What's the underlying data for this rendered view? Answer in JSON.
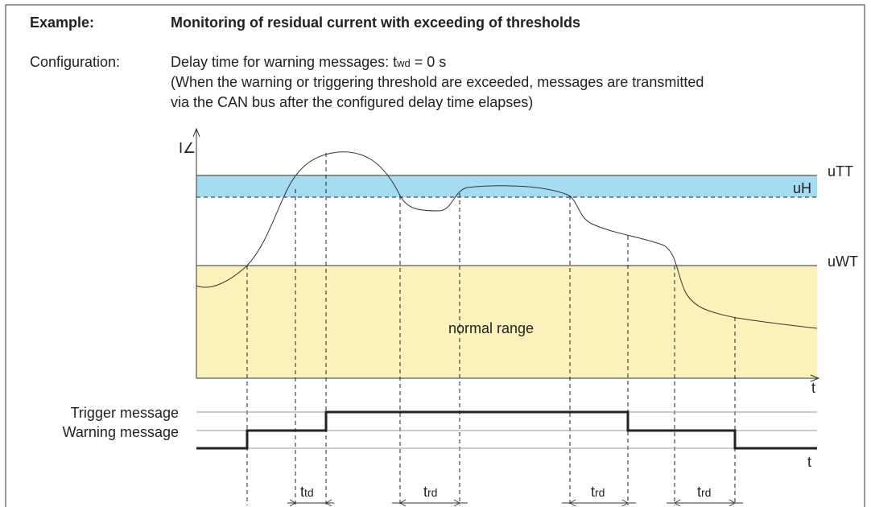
{
  "header": {
    "label": "Example:",
    "title": "Monitoring of residual current with exceeding of thresholds"
  },
  "configuration": {
    "label": "Configuration:",
    "line1": {
      "prefix": "Delay time for warning messages: t",
      "sub": "wd",
      "suffix": " = 0 s"
    },
    "line2": "(When the warning or triggering threshold are exceeded, messages are transmitted",
    "line3": "via the CAN bus after the configured delay time elapses)"
  },
  "diagram": {
    "y_axis_label": "I∠",
    "x_axis_label": "t",
    "thresholds": [
      "uTT",
      "uH",
      "uWT"
    ],
    "normal_range": "normal range",
    "signals": [
      "Trigger message",
      "Warning message"
    ],
    "signal_time_label": "t",
    "intervals": [
      {
        "main": "t",
        "sub": "td"
      },
      {
        "main": "t",
        "sub": "rd"
      },
      {
        "main": "t",
        "sub": "rd"
      },
      {
        "main": "t",
        "sub": "rd"
      }
    ]
  }
}
